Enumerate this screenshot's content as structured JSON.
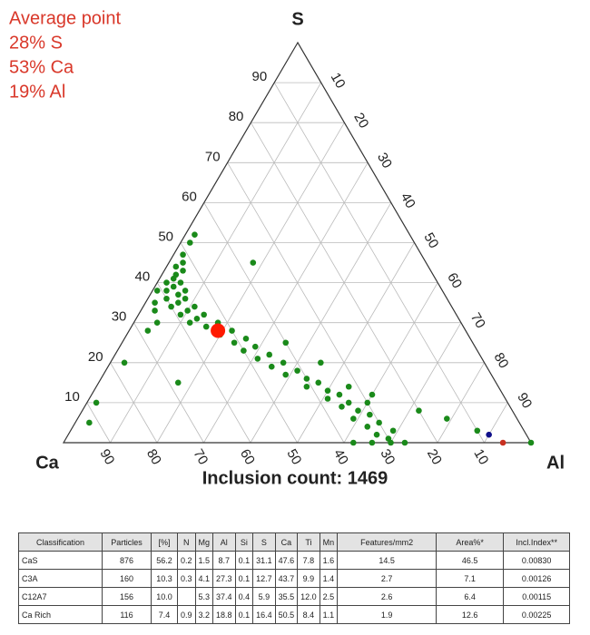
{
  "chart_data": {
    "type": "ternary",
    "average": {
      "label": "Average point",
      "values": [
        28,
        53,
        19
      ],
      "value_labels": [
        "28% S",
        "53% Ca",
        "19% Al"
      ],
      "color": "#ff1a00"
    },
    "vertices": [
      "S",
      "Ca",
      "Al"
    ],
    "annotation": "Inclusion count: 1469",
    "ticks": [
      10,
      20,
      30,
      40,
      50,
      60,
      70,
      80,
      90
    ],
    "grid": true,
    "series": [
      {
        "color": "#1a8a1a",
        "S": [
          47,
          45,
          44,
          43,
          42,
          41,
          40,
          40,
          39,
          38,
          38,
          37,
          36,
          36,
          35,
          34,
          34,
          33,
          32,
          32,
          31,
          30,
          30,
          29,
          28,
          27,
          26,
          25,
          24,
          23,
          22,
          21,
          20,
          19,
          18,
          17,
          16,
          15,
          14,
          13,
          12,
          11,
          10,
          9,
          8,
          7,
          6,
          5,
          4,
          3,
          2,
          1,
          0,
          0,
          0,
          0,
          50,
          52,
          35,
          28,
          20,
          10,
          5,
          15,
          25,
          20,
          8,
          6,
          3,
          45,
          30,
          38,
          33,
          14,
          12,
          10,
          0
        ],
        "Ca": [
          51,
          52,
          54,
          53,
          55,
          56,
          58,
          55,
          57,
          59,
          55,
          57,
          60,
          56,
          58,
          60,
          55,
          57,
          59,
          54,
          56,
          58,
          52,
          55,
          50,
          53,
          48,
          51,
          47,
          50,
          45,
          48,
          43,
          46,
          41,
          44,
          40,
          38,
          41,
          37,
          35,
          38,
          34,
          36,
          33,
          31,
          35,
          30,
          33,
          28,
          32,
          30,
          34,
          30,
          38,
          27,
          48,
          46,
          63,
          68,
          77,
          88,
          92,
          68,
          40,
          35,
          20,
          15,
          10,
          37,
          65,
          61,
          64,
          32,
          28,
          30,
          0
        ],
        "Al": [
          2,
          3,
          2,
          4,
          3,
          3,
          2,
          5,
          4,
          3,
          7,
          6,
          4,
          8,
          7,
          6,
          11,
          10,
          9,
          14,
          13,
          12,
          18,
          16,
          22,
          20,
          26,
          24,
          29,
          27,
          33,
          31,
          37,
          35,
          41,
          39,
          44,
          47,
          45,
          50,
          53,
          51,
          56,
          55,
          59,
          62,
          59,
          65,
          63,
          69,
          66,
          69,
          66,
          70,
          62,
          73,
          2,
          2,
          2,
          4,
          3,
          2,
          3,
          17,
          35,
          45,
          72,
          79,
          87,
          18,
          5,
          1,
          3,
          54,
          60,
          60,
          100
        ]
      },
      {
        "color": "#10108a",
        "S": [
          2
        ],
        "Ca": [
          8
        ],
        "Al": [
          90
        ]
      },
      {
        "color": "#c83020",
        "S": [
          0
        ],
        "Ca": [
          6
        ],
        "Al": [
          94
        ]
      }
    ]
  },
  "table": {
    "header": [
      "Classification",
      "Particles",
      "[%]",
      "N",
      "Mg",
      "Al",
      "Si",
      "S",
      "Ca",
      "Ti",
      "Mn",
      "Features/mm2",
      "Area%*",
      "Incl.Index**"
    ],
    "rows": [
      [
        "CaS",
        "876",
        "56.2",
        "0.2",
        "1.5",
        "8.7",
        "0.1",
        "31.1",
        "47.6",
        "7.8",
        "1.6",
        "14.5",
        "46.5",
        "0.00830"
      ],
      [
        "C3A",
        "160",
        "10.3",
        "0.3",
        "4.1",
        "27.3",
        "0.1",
        "12.7",
        "43.7",
        "9.9",
        "1.4",
        "2.7",
        "7.1",
        "0.00126"
      ],
      [
        "C12A7",
        "156",
        "10.0",
        null,
        "5.3",
        "37.4",
        "0.4",
        "5.9",
        "35.5",
        "12.0",
        "2.5",
        "2.6",
        "6.4",
        "0.00115"
      ],
      [
        "Ca Rich",
        "116",
        "7.4",
        "0.9",
        "3.2",
        "18.8",
        "0.1",
        "16.4",
        "50.5",
        "8.4",
        "1.1",
        "1.9",
        "12.6",
        "0.00225"
      ]
    ]
  }
}
